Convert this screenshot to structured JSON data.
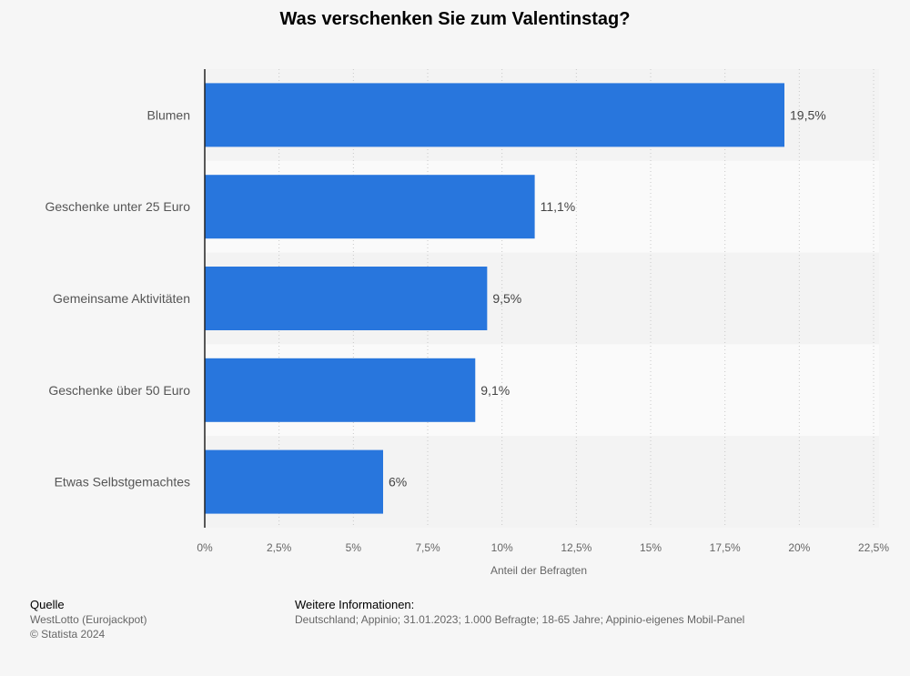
{
  "title": "Was verschenken Sie zum Valentinstag?",
  "chart_data": {
    "type": "bar",
    "orientation": "horizontal",
    "categories": [
      "Blumen",
      "Geschenke unter 25 Euro",
      "Gemeinsame Aktivitäten",
      "Geschenke über 50 Euro",
      "Etwas Selbstgemachtes"
    ],
    "values": [
      19.5,
      11.1,
      9.5,
      9.1,
      6
    ],
    "value_labels": [
      "19,5%",
      "11,1%",
      "9,5%",
      "9,1%",
      "6%"
    ],
    "xlabel": "Anteil der Befragten",
    "ylabel": "",
    "xlim": [
      0,
      22.5
    ],
    "x_ticks": [
      0,
      2.5,
      5,
      7.5,
      10,
      12.5,
      15,
      17.5,
      20,
      22.5
    ],
    "x_tick_labels": [
      "0%",
      "2,5%",
      "5%",
      "7,5%",
      "10%",
      "12,5%",
      "15%",
      "17,5%",
      "20%",
      "22,5%"
    ],
    "grid": "vertical dotted",
    "bar_color": "#2876dd"
  },
  "footer": {
    "source_heading": "Quelle",
    "source_lines": [
      "WestLotto (Eurojackpot)",
      "© Statista 2024"
    ],
    "info_heading": "Weitere Informationen:",
    "info_text": "Deutschland; Appinio; 31.01.2023; 1.000 Befragte; 18-65 Jahre; Appinio-eigenes Mobil-Panel"
  }
}
